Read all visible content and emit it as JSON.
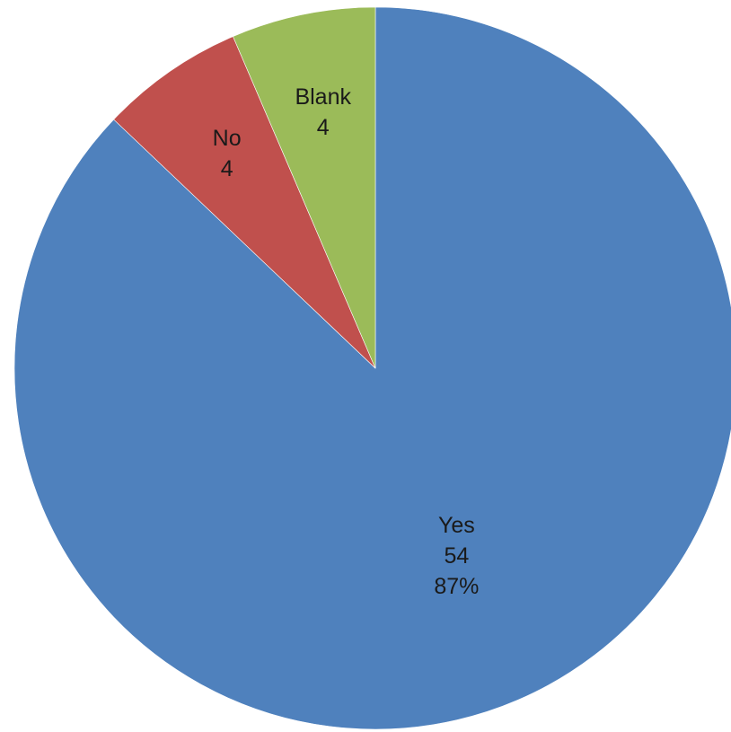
{
  "chart_data": {
    "type": "pie",
    "start_angle_deg": 0,
    "direction": "clockwise",
    "legend": "none",
    "slices": [
      {
        "label": "Yes",
        "value": 54,
        "percent_label": "87%",
        "color": "#4F81BD"
      },
      {
        "label": "No",
        "value": 4,
        "percent_label": "",
        "color": "#C0504D"
      },
      {
        "label": "Blank",
        "value": 4,
        "percent_label": "",
        "color": "#9BBB59"
      }
    ]
  }
}
